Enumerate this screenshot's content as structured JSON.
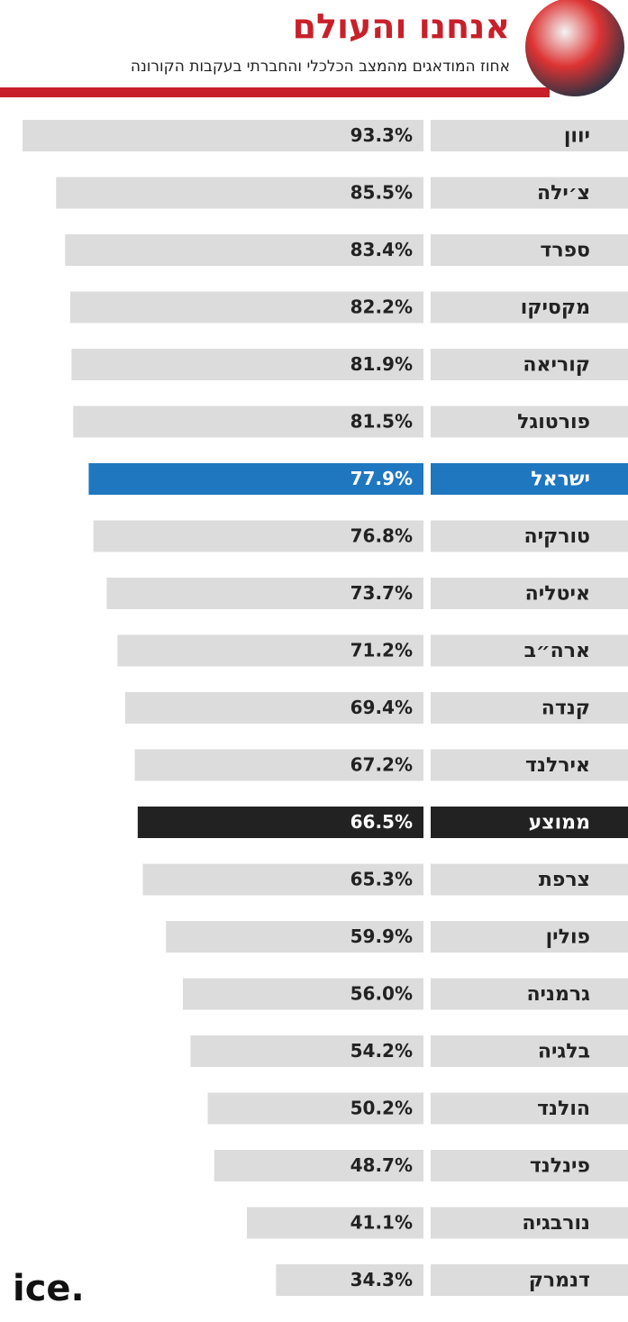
{
  "chart_data": {
    "type": "bar",
    "orientation": "horizontal",
    "title": "אנחנו והעולם",
    "subtitle": "אחוז המודאגים מהמצב הכלכלי והחברתי בעקבות הקורונה",
    "categories": [
      "יוון",
      "צ׳ילה",
      "ספרד",
      "מקסיקו",
      "קוריאה",
      "פורטוגל",
      "ישראל",
      "טורקיה",
      "איטליה",
      "ארה״ב",
      "קנדה",
      "אירלנד",
      "ממוצע",
      "צרפת",
      "פולין",
      "גרמניה",
      "בלגיה",
      "הולנד",
      "פינלנד",
      "נורבגיה",
      "דנמרק"
    ],
    "values": [
      93.3,
      85.5,
      83.4,
      82.2,
      81.9,
      81.5,
      77.9,
      76.8,
      73.7,
      71.2,
      69.4,
      67.2,
      66.5,
      65.3,
      59.9,
      56.0,
      54.2,
      50.2,
      48.7,
      41.1,
      34.3
    ],
    "value_labels": [
      "93.3%",
      "85.5%",
      "83.4%",
      "82.2%",
      "81.9%",
      "81.5%",
      "77.9%",
      "76.8%",
      "73.7%",
      "71.2%",
      "69.4%",
      "67.2%",
      "66.5%",
      "65.3%",
      "59.9%",
      "56.0%",
      "54.2%",
      "50.2%",
      "48.7%",
      "41.1%",
      "34.3%"
    ],
    "color": "#dcdcdc",
    "colors": [
      "#dcdcdc",
      "#dcdcdc",
      "#dcdcdc",
      "#dcdcdc",
      "#dcdcdc",
      "#dcdcdc",
      "#1f77c0",
      "#dcdcdc",
      "#dcdcdc",
      "#dcdcdc",
      "#dcdcdc",
      "#dcdcdc",
      "#222222",
      "#dcdcdc",
      "#dcdcdc",
      "#dcdcdc",
      "#dcdcdc",
      "#dcdcdc",
      "#dcdcdc",
      "#dcdcdc",
      "#dcdcdc"
    ]
  },
  "logo": "ice."
}
